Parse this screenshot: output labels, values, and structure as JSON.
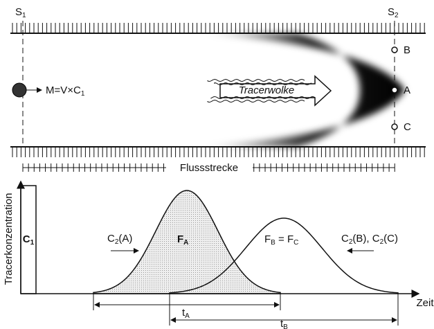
{
  "river": {
    "start": [
      "S",
      "1"
    ],
    "end": [
      "S",
      "2"
    ],
    "source": [
      "M=V×C",
      "1"
    ],
    "cloud": "Tracerwolke",
    "points": [
      "B",
      "A",
      "C"
    ],
    "reach": "Flussstrecke"
  },
  "plot": {
    "y_axis": "Tracerkonzentration",
    "x_axis": "Zeit",
    "input": [
      "C",
      "1"
    ],
    "curve_a_label": [
      "C",
      "2",
      "(A)"
    ],
    "area_a": [
      "F",
      "A"
    ],
    "area_bc": [
      "F",
      "B",
      " = F",
      "C"
    ],
    "curve_bc_label": [
      "C",
      "2",
      "(B), C",
      "2",
      "(C)"
    ],
    "time_a": [
      "t",
      "A"
    ],
    "time_b": [
      "t",
      "B"
    ]
  }
}
